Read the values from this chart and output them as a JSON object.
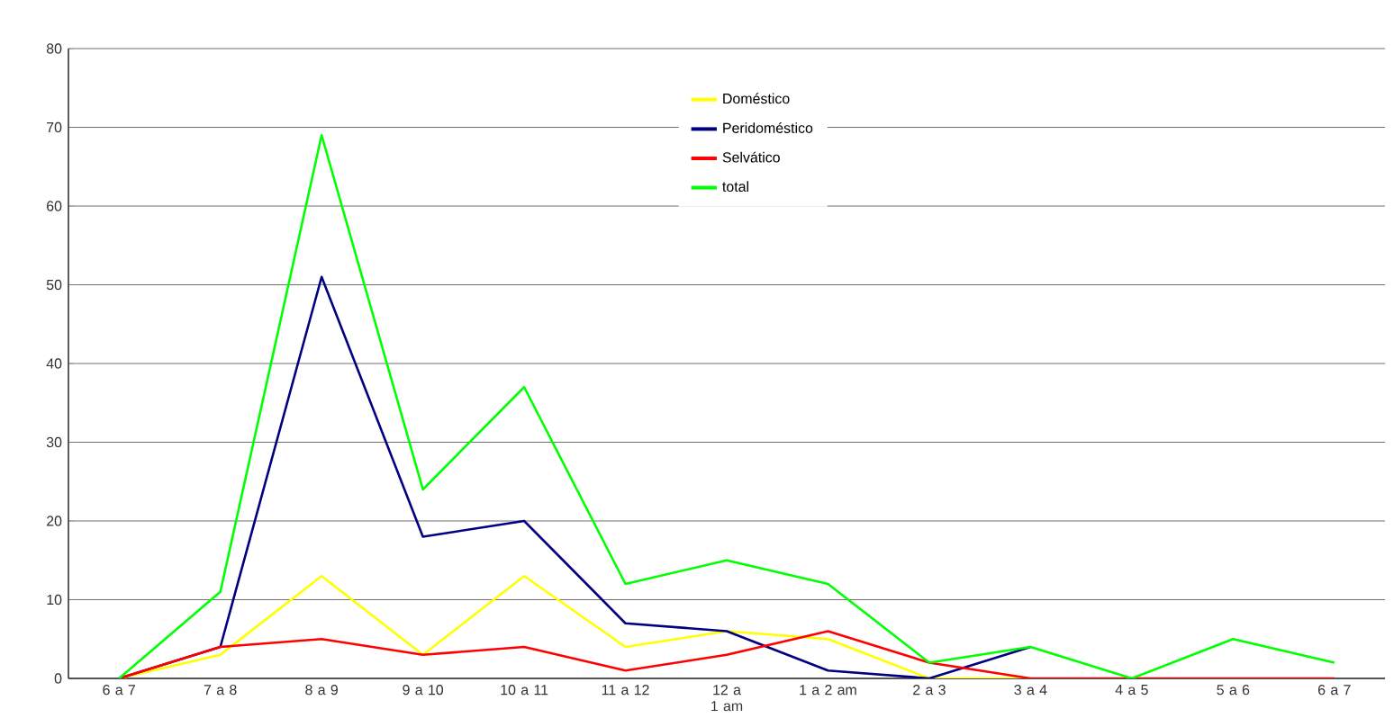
{
  "chart_data": {
    "type": "line",
    "categories": [
      "6 a 7",
      "7 a 8",
      "8 a 9",
      "9 a 10",
      "10 a 11",
      "11 a 12",
      "12 a 1 am",
      "1 a 2 am",
      "2 a 3",
      "3 a 4",
      "4 a 5",
      "5 a 6",
      "6 a 7"
    ],
    "series": [
      {
        "name": "Doméstico",
        "color": "#ffff00",
        "values": [
          0,
          3,
          13,
          3,
          13,
          4,
          6,
          5,
          0,
          0,
          null,
          null,
          null
        ]
      },
      {
        "name": "Peridoméstico",
        "color": "#000080",
        "values": [
          0,
          4,
          51,
          18,
          20,
          7,
          6,
          1,
          0,
          4,
          null,
          null,
          null
        ]
      },
      {
        "name": "Selvático",
        "color": "#ff0000",
        "values": [
          0,
          4,
          5,
          3,
          4,
          1,
          3,
          6,
          2,
          0,
          0,
          0,
          0
        ]
      },
      {
        "name": "total",
        "color": "#00ff00",
        "values": [
          0,
          11,
          69,
          24,
          37,
          12,
          15,
          12,
          2,
          4,
          0,
          5,
          2
        ]
      }
    ],
    "ylim": [
      0,
      80
    ],
    "yticks": [
      0,
      10,
      20,
      30,
      40,
      50,
      60,
      70,
      80
    ],
    "grid": "y",
    "legend": "top",
    "marker": "none",
    "line_style": "solid"
  }
}
